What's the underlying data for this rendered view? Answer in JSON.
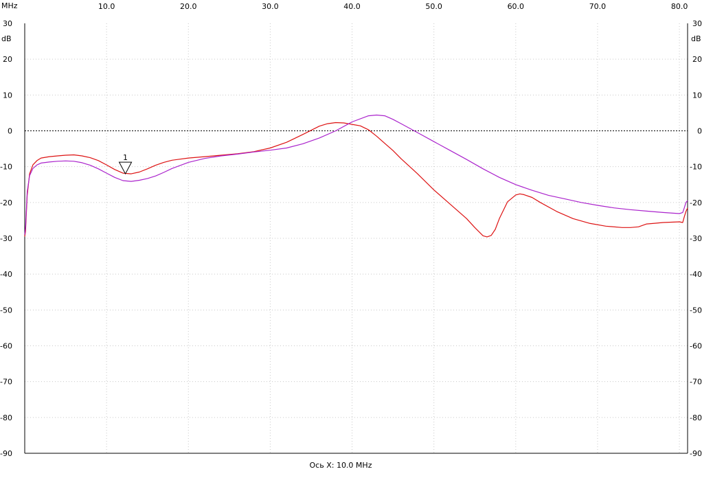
{
  "chart_data": {
    "type": "line",
    "x_unit": "MHz",
    "y_unit": "dB",
    "xlim": [
      0.0,
      81.0
    ],
    "ylim": [
      -90,
      30
    ],
    "x_ticks": [
      10,
      20,
      30,
      40,
      50,
      60,
      70,
      80
    ],
    "x_tick_labels": [
      "10.0",
      "20.0",
      "30.0",
      "40.0",
      "50.0",
      "60.0",
      "70.0",
      "80.0"
    ],
    "y_ticks": [
      30,
      20,
      10,
      0,
      -10,
      -20,
      -30,
      -40,
      -50,
      -60,
      -70,
      -80,
      -90
    ],
    "y_tick_labels": [
      "30",
      "20",
      "10",
      "0",
      "-10",
      "-20",
      "-30",
      "-40",
      "-50",
      "-60",
      "-70",
      "-80",
      "-90"
    ],
    "x_axis_caption": "Ось X: 10.0 MHz",
    "grid": true,
    "reference_line_y": 0,
    "marker": {
      "label": "1",
      "x": 12.3,
      "y": -12
    },
    "series": [
      {
        "color": "#dd1111",
        "x": [
          0.0,
          0.1,
          0.3,
          0.6,
          1.0,
          1.5,
          2.0,
          3.0,
          4.0,
          5.0,
          6.0,
          7.0,
          8.0,
          9.0,
          10.0,
          11.0,
          12.0,
          13.0,
          14.0,
          15.0,
          16.0,
          17.0,
          18.0,
          20.0,
          22.0,
          24.0,
          26.0,
          28.0,
          30.0,
          32.0,
          34.0,
          36.0,
          37.0,
          38.0,
          39.0,
          40.0,
          41.0,
          42.0,
          43.0,
          44.0,
          45.0,
          46.0,
          48.0,
          50.0,
          52.0,
          54.0,
          55.0,
          56.0,
          56.5,
          57.0,
          57.5,
          58.0,
          59.0,
          60.0,
          60.5,
          61.0,
          62.0,
          63.0,
          65.0,
          67.0,
          69.0,
          71.0,
          73.0,
          74.0,
          75.0,
          76.0,
          77.0,
          78.0,
          79.0,
          80.0,
          80.4,
          80.6,
          80.8,
          81.0
        ],
        "y": [
          -29.5,
          -28.0,
          -18.0,
          -12.0,
          -9.5,
          -8.3,
          -7.6,
          -7.2,
          -7.0,
          -6.8,
          -6.7,
          -7.0,
          -7.5,
          -8.3,
          -9.5,
          -10.8,
          -11.8,
          -12.0,
          -11.5,
          -10.6,
          -9.6,
          -8.8,
          -8.2,
          -7.6,
          -7.2,
          -6.8,
          -6.4,
          -5.8,
          -4.8,
          -3.2,
          -1.0,
          1.3,
          2.0,
          2.3,
          2.2,
          1.8,
          1.4,
          0.3,
          -1.5,
          -3.5,
          -5.5,
          -7.8,
          -12.0,
          -16.5,
          -20.5,
          -24.5,
          -27.0,
          -29.3,
          -29.6,
          -29.2,
          -27.5,
          -24.5,
          -19.8,
          -17.9,
          -17.6,
          -17.8,
          -18.6,
          -20.0,
          -22.5,
          -24.5,
          -25.8,
          -26.6,
          -27.0,
          -27.0,
          -26.8,
          -26.0,
          -25.8,
          -25.6,
          -25.5,
          -25.4,
          -25.6,
          -24.0,
          -22.5,
          -21.5
        ]
      },
      {
        "color": "#aa22cc",
        "x": [
          0.0,
          0.1,
          0.3,
          0.6,
          1.0,
          1.5,
          2.0,
          3.0,
          4.0,
          5.0,
          6.0,
          7.0,
          8.0,
          9.0,
          10.0,
          11.0,
          12.0,
          13.0,
          14.0,
          15.0,
          16.0,
          17.0,
          18.0,
          20.0,
          22.0,
          24.0,
          26.0,
          28.0,
          30.0,
          32.0,
          34.0,
          36.0,
          38.0,
          40.0,
          42.0,
          43.0,
          44.0,
          45.0,
          46.0,
          48.0,
          50.0,
          52.0,
          54.0,
          56.0,
          58.0,
          60.0,
          62.0,
          64.0,
          66.0,
          68.0,
          70.0,
          72.0,
          74.0,
          76.0,
          78.0,
          80.0,
          80.4,
          80.6,
          80.8,
          81.0
        ],
        "y": [
          -29.0,
          -27.0,
          -17.0,
          -12.5,
          -10.5,
          -9.5,
          -9.0,
          -8.7,
          -8.5,
          -8.4,
          -8.5,
          -8.9,
          -9.6,
          -10.6,
          -11.8,
          -13.0,
          -13.9,
          -14.1,
          -13.8,
          -13.3,
          -12.6,
          -11.6,
          -10.5,
          -8.8,
          -7.7,
          -7.0,
          -6.5,
          -5.9,
          -5.4,
          -4.8,
          -3.6,
          -2.0,
          0.0,
          2.5,
          4.2,
          4.4,
          4.2,
          3.2,
          2.0,
          -0.5,
          -3.0,
          -5.5,
          -8.0,
          -10.6,
          -13.0,
          -15.0,
          -16.6,
          -18.0,
          -19.0,
          -20.0,
          -20.8,
          -21.5,
          -22.0,
          -22.4,
          -22.8,
          -23.1,
          -22.8,
          -21.5,
          -20.0,
          -19.5
        ]
      }
    ]
  }
}
